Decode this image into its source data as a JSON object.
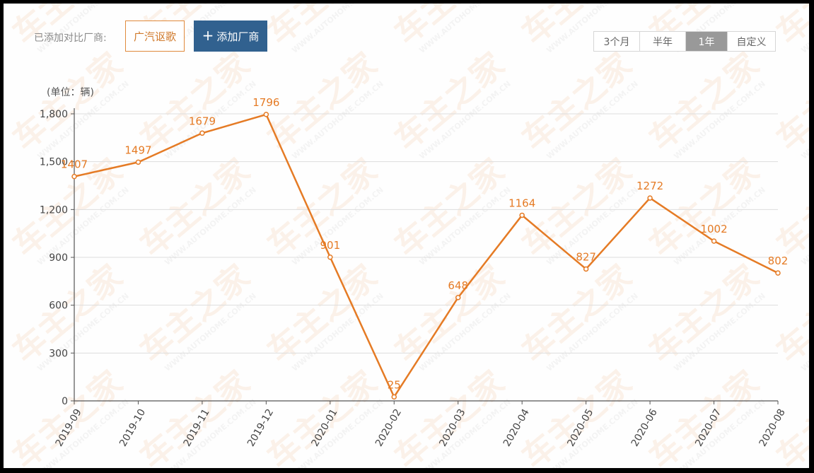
{
  "header": {
    "compare_label": "已添加对比厂商:",
    "brand_tag": "广汽讴歌",
    "add_button_label": "添加厂商",
    "add_icon": "plus-icon"
  },
  "range_selector": {
    "options": [
      "3个月",
      "半年",
      "1年",
      "自定义"
    ],
    "active": "1年"
  },
  "chart_data": {
    "type": "line",
    "unit_label": "(单位：辆)",
    "categories": [
      "2019-09",
      "2019-10",
      "2019-11",
      "2019-12",
      "2020-01",
      "2020-02",
      "2020-03",
      "2020-04",
      "2020-05",
      "2020-06",
      "2020-07",
      "2020-08"
    ],
    "series": [
      {
        "values": [
          1407,
          1497,
          1679,
          1796,
          901,
          25,
          648,
          1164,
          827,
          1272,
          1002,
          802
        ]
      }
    ],
    "ylim": [
      0,
      1800
    ],
    "yticks": [
      0,
      300,
      600,
      900,
      1200,
      1500,
      1800
    ],
    "ytick_labels": [
      "0",
      "300",
      "600",
      "900",
      "1,200",
      "1,500",
      "1,800"
    ],
    "grid": true,
    "line_color": "#e57b25",
    "label_color": "#e57b25"
  }
}
